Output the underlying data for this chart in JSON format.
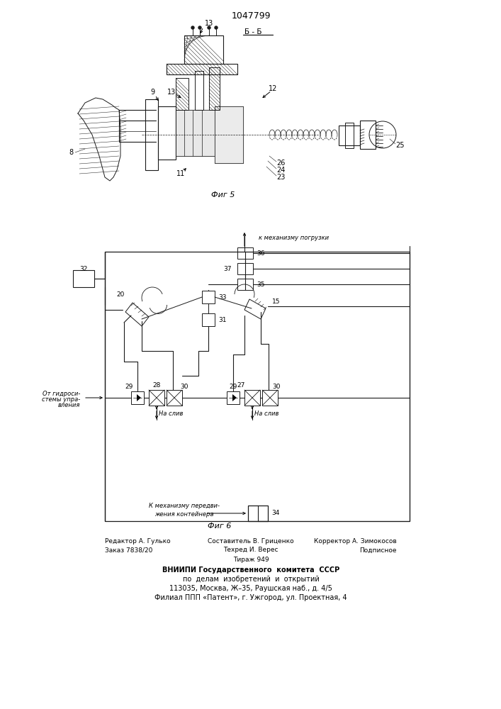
{
  "patent_number": "1047799",
  "fig5_label": "Фиг 5",
  "fig6_label": "Фиг 6",
  "section_label": "Б-Б",
  "bg_color": "#ffffff",
  "lc": "#1a1a1a",
  "footer": {
    "col1_line1": "Редактор А. Гулько",
    "col1_line2": "Заказ 7838/20",
    "col2_line1": "Составитель В. Гриценко",
    "col2_line2": "Техред И. Верес",
    "col2_line3": "Тираж 949",
    "col3_line1": "Корректор А. Зимокосов",
    "col3_line2": "Подписное",
    "org1": "ВНИИПИ Государственного  комитета  СССР",
    "org2": "по  делам  изобретений  и  открытий",
    "org3": "113035, Москва, Ж–35, Раушская наб., д. 4/5",
    "org4": "Филиал ППП «Патент», г. Ужгород, ул. Проектная, 4"
  }
}
